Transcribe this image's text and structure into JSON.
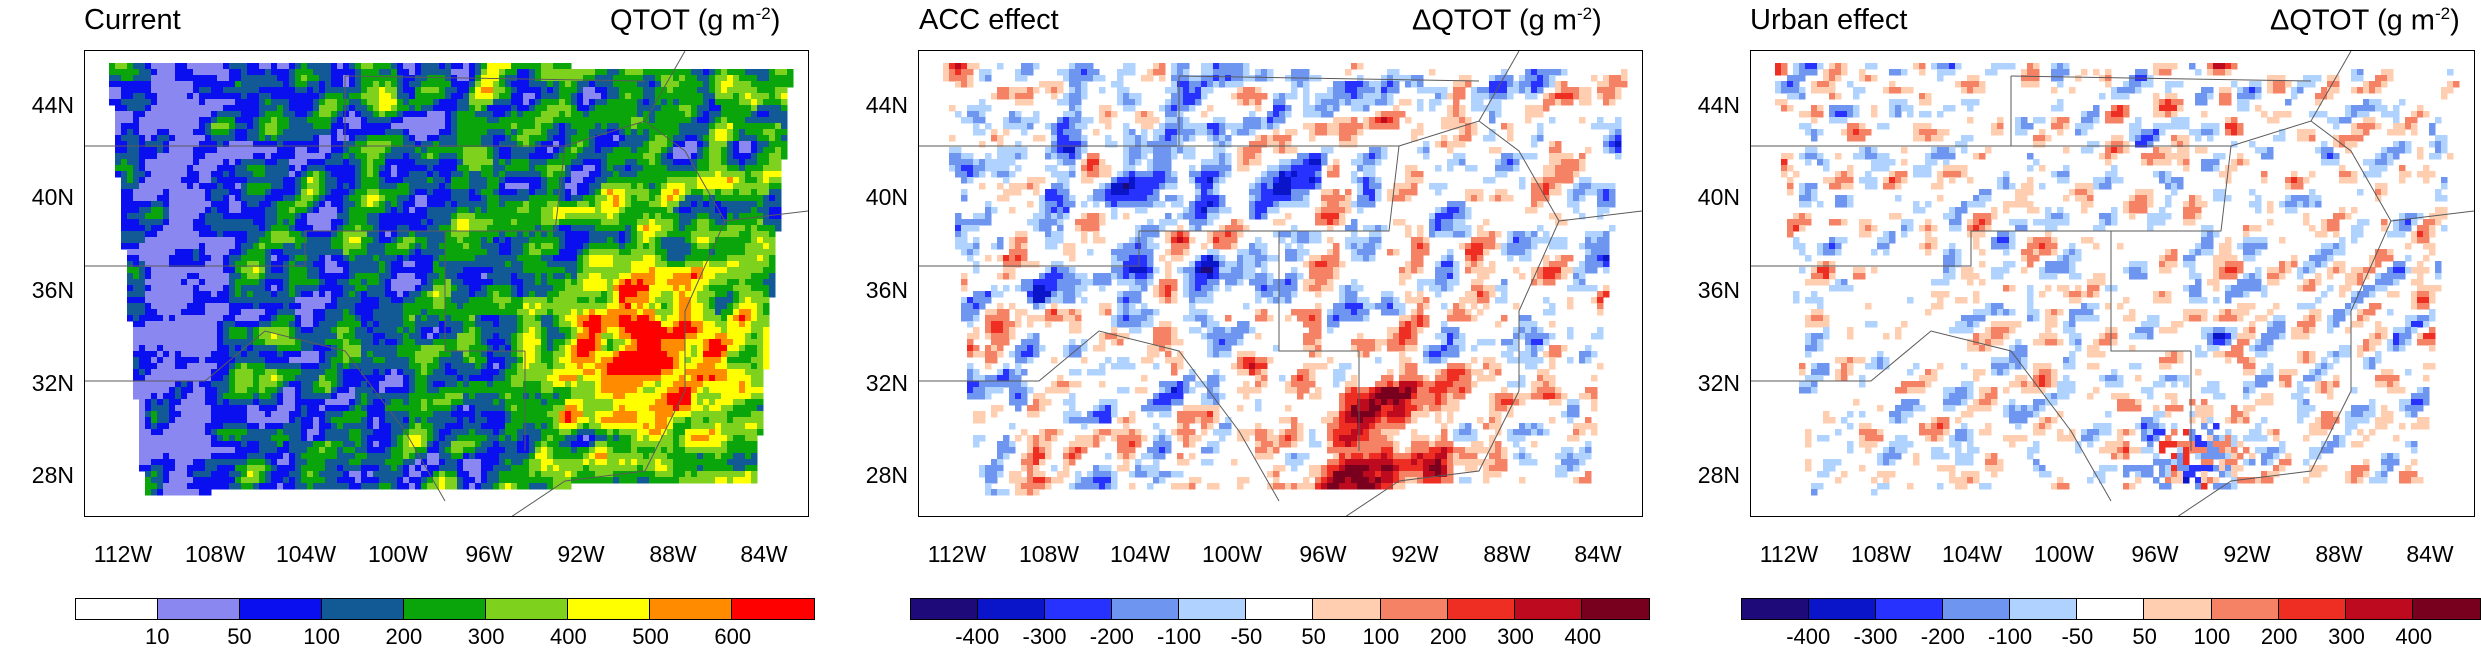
{
  "panels": [
    {
      "title": "Current",
      "var_prefix": "QTOT",
      "units_text": "(g m",
      "units_sup": "-2",
      "units_close": ")",
      "kind": "abs"
    },
    {
      "title": "ACC effect",
      "var_prefix": "ΔQTOT",
      "units_text": "(g m",
      "units_sup": "-2",
      "units_close": ")",
      "kind": "diff_acc"
    },
    {
      "title": "Urban effect",
      "var_prefix": "ΔQTOT",
      "units_text": "(g m",
      "units_sup": "-2",
      "units_close": ")",
      "kind": "diff_urban"
    }
  ],
  "lat_labels": [
    "44N",
    "40N",
    "36N",
    "32N",
    "28N"
  ],
  "lon_labels": [
    "112W",
    "108W",
    "104W",
    "100W",
    "96W",
    "92W",
    "88W",
    "84W"
  ],
  "colorbar_abs": {
    "colors": [
      "#ffffff",
      "#8a87f0",
      "#0a0ff0",
      "#125a96",
      "#0aa50a",
      "#7ed21e",
      "#ffff00",
      "#ff8c00",
      "#ff0000"
    ],
    "labels": [
      "10",
      "50",
      "100",
      "200",
      "300",
      "400",
      "500",
      "600"
    ]
  },
  "colorbar_diff": {
    "colors": [
      "#1e0a78",
      "#0a14c8",
      "#2832ff",
      "#6e96f0",
      "#afd2ff",
      "#ffffff",
      "#ffcdaf",
      "#f58264",
      "#ee2d23",
      "#be0a1e",
      "#78001e"
    ],
    "labels": [
      "-400",
      "-300",
      "-200",
      "-100",
      "-50",
      "50",
      "100",
      "200",
      "300",
      "400"
    ]
  },
  "colors": {
    "border": "#000000",
    "state_lines": "#5a5a5a"
  }
}
